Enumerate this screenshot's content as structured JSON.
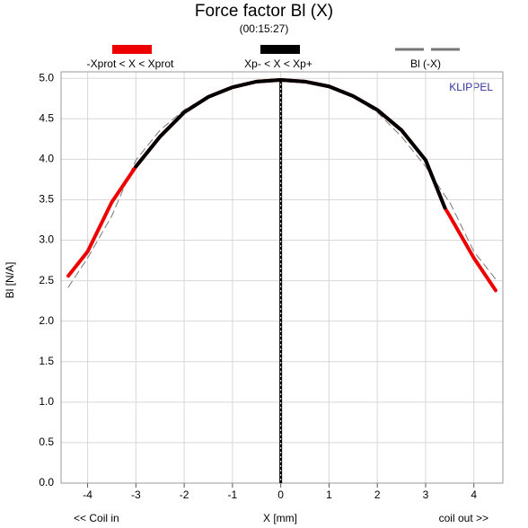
{
  "chart_data": {
    "type": "line",
    "title": "Force factor Bl (X)",
    "subtitle": "(00:15:27)",
    "xlabel": "X [mm]",
    "ylabel": "Bl [N/A]",
    "annotations": [
      "<< Coil in",
      "coil out >>",
      "KLIPPEL"
    ],
    "x": [
      -4.4,
      -4,
      -3.5,
      -3,
      -2.5,
      -2,
      -1.5,
      -1,
      -0.5,
      0,
      0.5,
      1,
      1.5,
      2,
      2.5,
      3,
      3.4,
      3.5,
      4,
      4.45
    ],
    "series": [
      {
        "name": "-Xprot < X < Xprot",
        "color": "#ee0000",
        "dash": false,
        "values": [
          2.56,
          2.86,
          3.47,
          3.91,
          4.28,
          4.58,
          4.77,
          4.89,
          4.96,
          4.98,
          4.96,
          4.9,
          4.78,
          4.61,
          4.36,
          3.99,
          3.4,
          3.3,
          2.78,
          2.38
        ]
      },
      {
        "name": "Xp- < X < Xp+",
        "color": "#000000",
        "dash": false,
        "values": [
          null,
          null,
          null,
          3.91,
          4.28,
          4.58,
          4.77,
          4.89,
          4.96,
          4.98,
          4.96,
          4.9,
          4.78,
          4.61,
          4.36,
          3.99,
          3.4,
          null,
          null,
          null
        ]
      },
      {
        "name": "Bl (-X)",
        "color": "#777777",
        "dash": true,
        "values": [
          2.42,
          2.78,
          3.3,
          3.99,
          4.36,
          4.61,
          4.78,
          4.9,
          4.96,
          4.98,
          4.96,
          4.89,
          4.77,
          4.58,
          4.28,
          3.91,
          3.55,
          3.47,
          2.86,
          2.52
        ]
      }
    ],
    "marker_x": 0,
    "xlim": [
      -4.55,
      4.6
    ],
    "ylim": [
      0,
      5.08
    ],
    "xticks": [
      -4,
      -3,
      -2,
      -1,
      0,
      1,
      2,
      3,
      4
    ],
    "yticks": [
      {
        "value": 0,
        "label": "0.0"
      },
      0.5,
      {
        "value": 1,
        "label": "1.0"
      },
      1.5,
      {
        "value": 2,
        "label": "2.0"
      },
      2.5,
      {
        "value": 3,
        "label": "3.0"
      },
      3.5,
      {
        "value": 4,
        "label": "4.0"
      },
      4.5,
      {
        "value": 5,
        "label": "5.0"
      }
    ],
    "grid": true
  }
}
